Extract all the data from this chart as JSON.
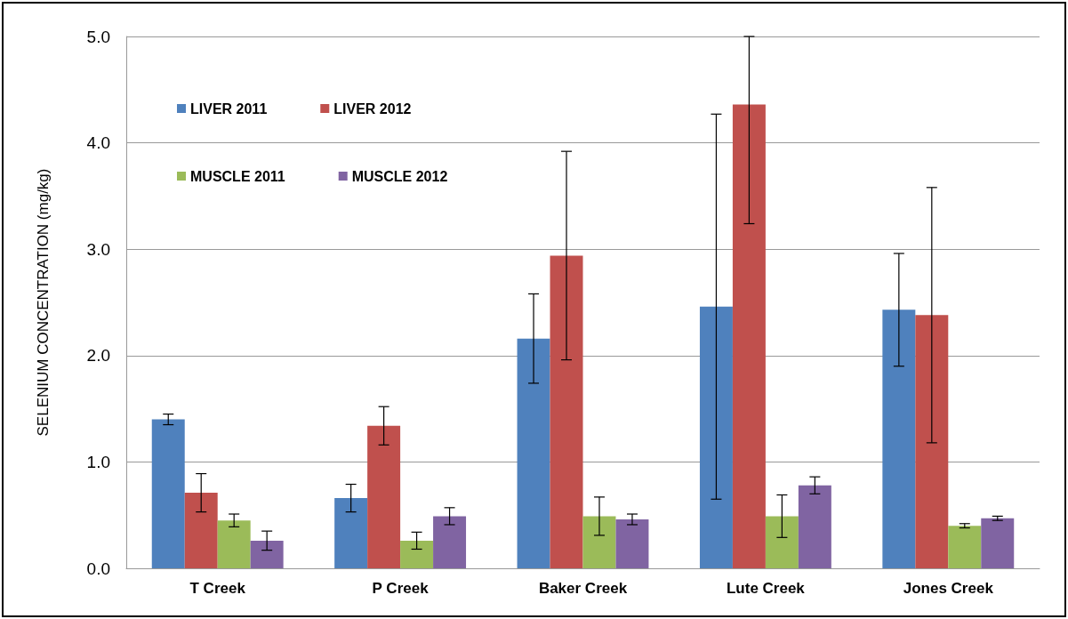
{
  "chart_data": {
    "type": "bar",
    "ylabel": "SELENIUM CONCENTRATION (mg/kg)",
    "categories": [
      "T Creek",
      "P Creek",
      "Baker Creek",
      "Lute Creek",
      "Jones Creek"
    ],
    "series": [
      {
        "name": "LIVER 2011",
        "color": "#4f81bd",
        "values": [
          1.4,
          0.66,
          2.16,
          2.46,
          2.43
        ],
        "errors": [
          0.05,
          0.13,
          0.42,
          1.81,
          0.53
        ]
      },
      {
        "name": "LIVER 2012",
        "color": "#c0504d",
        "values": [
          0.71,
          1.34,
          2.94,
          4.36,
          2.38
        ],
        "errors": [
          0.18,
          0.18,
          0.98,
          [
            3.24,
            5.0
          ],
          1.2
        ]
      },
      {
        "name": "MUSCLE 2011",
        "color": "#9bbb59",
        "values": [
          0.45,
          0.26,
          0.49,
          0.49,
          0.4
        ],
        "errors": [
          0.06,
          0.08,
          0.18,
          0.2,
          0.02
        ]
      },
      {
        "name": "MUSCLE 2012",
        "color": "#8064a2",
        "values": [
          0.26,
          0.49,
          0.46,
          0.78,
          0.47
        ],
        "errors": [
          0.09,
          0.08,
          0.05,
          0.08,
          0.02
        ]
      }
    ],
    "ylim": [
      0,
      5
    ],
    "yticks": [
      {
        "value": 0,
        "label": "0.0"
      },
      {
        "value": 1,
        "label": "1.0"
      },
      {
        "value": 2,
        "label": "2.0"
      },
      {
        "value": 3,
        "label": "3.0"
      },
      {
        "value": 4,
        "label": "4.0"
      },
      {
        "value": 5,
        "label": "5.0"
      }
    ],
    "grid": "y",
    "legend": "top left"
  }
}
